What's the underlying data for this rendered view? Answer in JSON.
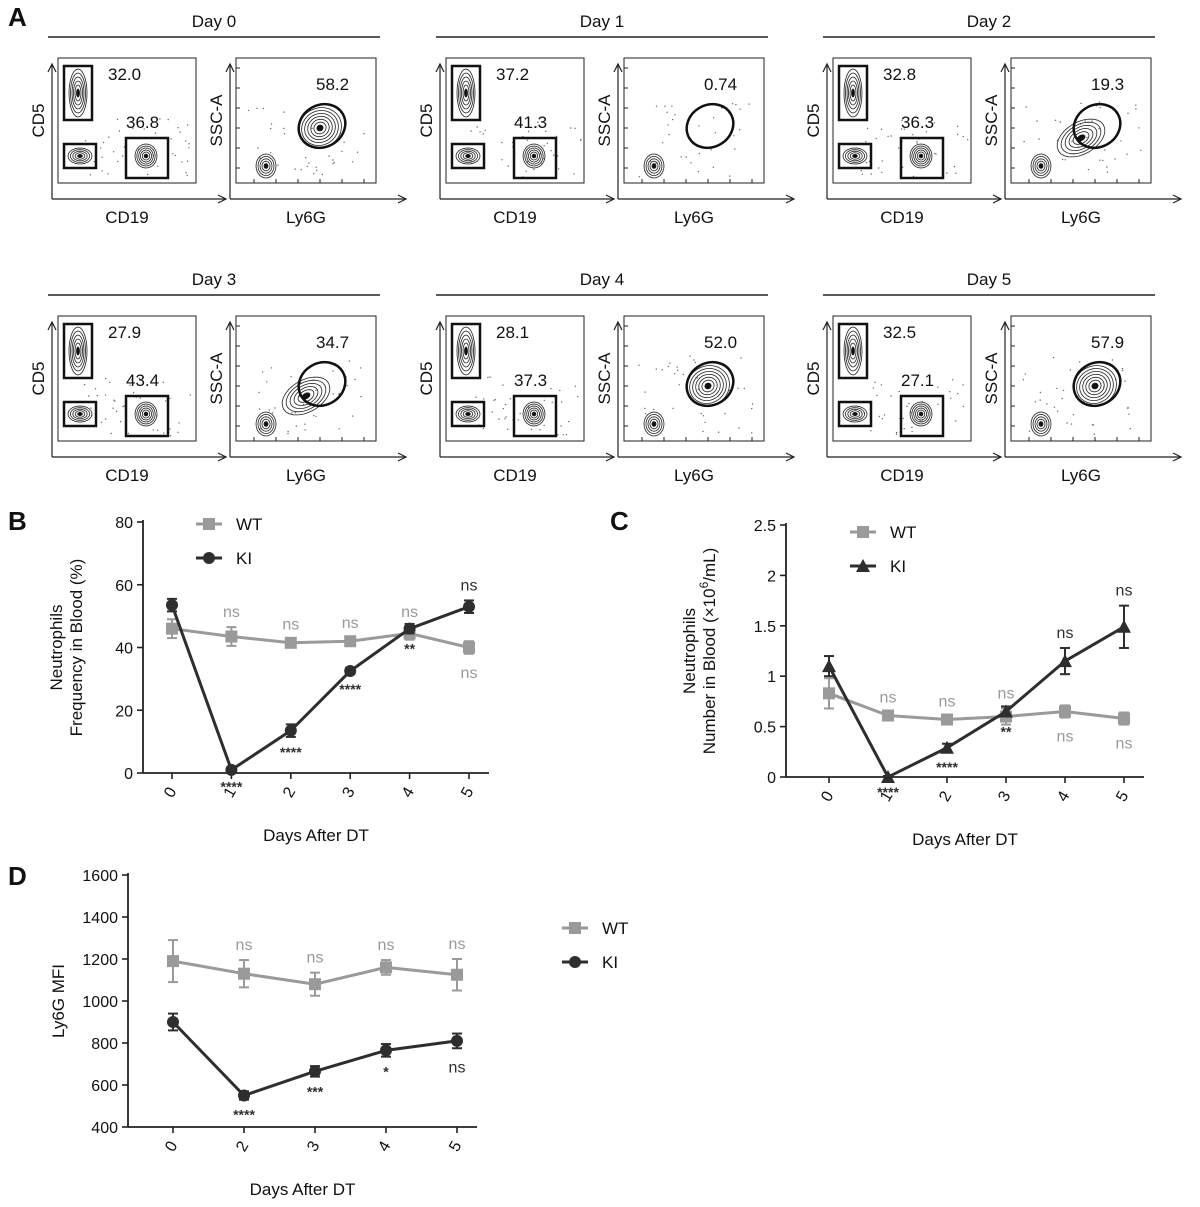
{
  "panel_a": {
    "label": "A",
    "days": [
      {
        "title": "Day 0",
        "cd5": "32.0",
        "cd19": "36.8",
        "ly6g": "58.2",
        "ly6g_gate": "full"
      },
      {
        "title": "Day 1",
        "cd5": "37.2",
        "cd19": "41.3",
        "ly6g": "0.74",
        "ly6g_gate": "empty"
      },
      {
        "title": "Day 2",
        "cd5": "32.8",
        "cd19": "36.3",
        "ly6g": "19.3",
        "ly6g_gate": "partial"
      },
      {
        "title": "Day 3",
        "cd5": "27.9",
        "cd19": "43.4",
        "ly6g": "34.7",
        "ly6g_gate": "partial"
      },
      {
        "title": "Day 4",
        "cd5": "28.1",
        "cd19": "37.3",
        "ly6g": "52.0",
        "ly6g_gate": "full"
      },
      {
        "title": "Day 5",
        "cd5": "32.5",
        "cd19": "27.1",
        "ly6g": "57.9",
        "ly6g_gate": "full"
      }
    ],
    "axes": {
      "cd5": "CD5",
      "cd19": "CD19",
      "ssc": "SSC-A",
      "ly6g": "Ly6G"
    }
  },
  "chart_data": [
    {
      "panel": "B",
      "type": "line",
      "ylabel_lines": [
        "Neutrophils",
        "Frequency in Blood (%)"
      ],
      "xlabel": "Days After DT",
      "x": [
        "0",
        "1",
        "2",
        "3",
        "4",
        "5"
      ],
      "ylim": [
        0,
        80
      ],
      "yticks": [
        0,
        20,
        40,
        60,
        80
      ],
      "grid": false,
      "legend": "top",
      "series": [
        {
          "name": "WT",
          "color": "#9a9a9a",
          "marker": "square",
          "values": [
            46,
            43.5,
            41.5,
            42,
            44.5,
            40
          ],
          "errors": [
            3,
            3,
            1,
            1,
            2,
            2
          ],
          "sig": [
            "",
            "ns",
            "ns",
            "ns",
            "ns",
            "ns"
          ],
          "sig_pos": [
            "",
            "above",
            "above",
            "above",
            "above",
            "below"
          ]
        },
        {
          "name": "KI",
          "color": "#2e2e2e",
          "marker": "circle",
          "values": [
            53.5,
            1,
            13.5,
            32.5,
            46,
            53
          ],
          "errors": [
            2,
            0.5,
            2,
            1,
            1.5,
            2
          ],
          "sig": [
            "",
            "****",
            "****",
            "****",
            "**",
            "ns"
          ],
          "sig_pos": [
            "",
            "below",
            "below",
            "below",
            "below",
            "above"
          ]
        }
      ]
    },
    {
      "panel": "C",
      "type": "line",
      "ylabel_lines": [
        "Neutrophils",
        "Number in Blood (×10",
        "6",
        "/mL)"
      ],
      "xlabel": "Days After DT",
      "x": [
        "0",
        "1",
        "2",
        "3",
        "4",
        "5"
      ],
      "ylim": [
        0,
        2.5
      ],
      "yticks": [
        0,
        0.5,
        1.0,
        1.5,
        2.0,
        2.5
      ],
      "grid": false,
      "legend": "top",
      "series": [
        {
          "name": "WT",
          "color": "#9a9a9a",
          "marker": "square",
          "values": [
            0.83,
            0.61,
            0.57,
            0.6,
            0.65,
            0.58
          ],
          "errors": [
            0.15,
            0.03,
            0.03,
            0.08,
            0.06,
            0.06
          ],
          "sig": [
            "",
            "ns",
            "ns",
            "ns",
            "ns",
            "ns"
          ],
          "sig_pos": [
            "",
            "above",
            "above",
            "above",
            "below",
            "below"
          ]
        },
        {
          "name": "KI",
          "color": "#2e2e2e",
          "marker": "triangle",
          "values": [
            1.1,
            0.0,
            0.29,
            0.65,
            1.15,
            1.49
          ],
          "errors": [
            0.1,
            0.01,
            0.04,
            0.05,
            0.13,
            0.21
          ],
          "sig": [
            "",
            "****",
            "****",
            "**",
            "ns",
            "ns"
          ],
          "sig_pos": [
            "",
            "below",
            "below",
            "below",
            "above",
            "above"
          ]
        }
      ]
    },
    {
      "panel": "D",
      "type": "line",
      "ylabel_lines": [
        "Ly6G MFI"
      ],
      "xlabel": "Days After DT",
      "x": [
        "0",
        "2",
        "3",
        "4",
        "5"
      ],
      "ylim": [
        400,
        1600
      ],
      "yticks": [
        400,
        600,
        800,
        1000,
        1200,
        1400,
        1600
      ],
      "grid": false,
      "legend": "right",
      "series": [
        {
          "name": "WT",
          "color": "#9a9a9a",
          "marker": "square",
          "values": [
            1190,
            1130,
            1080,
            1160,
            1125
          ],
          "errors": [
            100,
            65,
            55,
            35,
            75
          ],
          "sig": [
            "",
            "ns",
            "ns",
            "ns",
            "ns"
          ],
          "sig_pos": [
            "",
            "above",
            "above",
            "above",
            "above"
          ]
        },
        {
          "name": "KI",
          "color": "#2e2e2e",
          "marker": "circle",
          "values": [
            900,
            550,
            665,
            765,
            810
          ],
          "errors": [
            40,
            20,
            25,
            30,
            35
          ],
          "sig": [
            "",
            "****",
            "***",
            "*",
            "ns"
          ],
          "sig_pos": [
            "",
            "below",
            "below",
            "below",
            "below"
          ]
        }
      ]
    }
  ]
}
